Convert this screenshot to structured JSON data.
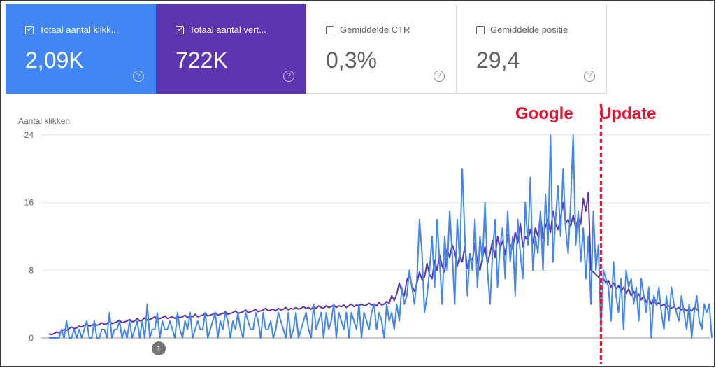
{
  "metrics": [
    {
      "label": "Totaal aantal klikk...",
      "value": "2,09K",
      "checked": true
    },
    {
      "label": "Totaal aantal vert...",
      "value": "722K",
      "checked": true
    },
    {
      "label": "Gemiddelde CTR",
      "value": "0,3%",
      "checked": false
    },
    {
      "label": "Gemiddelde positie",
      "value": "29,4",
      "checked": false
    }
  ],
  "help_glyph": "?",
  "annotation_badge": "1",
  "colors": {
    "clicks": "#4285f4",
    "impressions": "#5e35b1",
    "update": "#e8112d",
    "grid": "#e6e6e6"
  },
  "chart_data": {
    "type": "line",
    "ylabel": "Aantal klikken",
    "ylim": [
      0,
      24
    ],
    "yticks": [
      "0",
      "8",
      "16",
      "24"
    ],
    "annotation_text": [
      "Google",
      "Update"
    ],
    "update_index": 219,
    "series": [
      {
        "name": "Totaal aantal klikken",
        "values": [
          0,
          0,
          0,
          0,
          0,
          1,
          0,
          2,
          0,
          0,
          1,
          0,
          1,
          0,
          1,
          2,
          0,
          0,
          2,
          0,
          0,
          1,
          1,
          0,
          3,
          0,
          1,
          1,
          2,
          0,
          1,
          0,
          2,
          0,
          1,
          2,
          0,
          2,
          0,
          4,
          0,
          1,
          1,
          3,
          0,
          2,
          1,
          1,
          2,
          1,
          0,
          3,
          1,
          0,
          2,
          1,
          3,
          0,
          1,
          2,
          1,
          1,
          3,
          0,
          1,
          2,
          3,
          0,
          2,
          1,
          3,
          2,
          0,
          2,
          1,
          3,
          1,
          0,
          3,
          2,
          1,
          1,
          3,
          2,
          0,
          3,
          1,
          1,
          2,
          0,
          1,
          3,
          2,
          1,
          0,
          3,
          0,
          1,
          3,
          0,
          1,
          2,
          3,
          1,
          0,
          4,
          1,
          2,
          3,
          0,
          3,
          1,
          2,
          4,
          0,
          3,
          2,
          1,
          3,
          0,
          3,
          2,
          1,
          4,
          0,
          3,
          2,
          1,
          3,
          4,
          1,
          3,
          2,
          0,
          4,
          2,
          3,
          1,
          4,
          2,
          6,
          4,
          5,
          8,
          6,
          4,
          7,
          14,
          10,
          3,
          5,
          8,
          12,
          6,
          14,
          9,
          4,
          12,
          8,
          15,
          10,
          4,
          14,
          9,
          20,
          12,
          5,
          10,
          8,
          14,
          6,
          12,
          9,
          16,
          8,
          4,
          10,
          14,
          6,
          11,
          13,
          7,
          15,
          9,
          12,
          5,
          14,
          10,
          7,
          16,
          11,
          19,
          8,
          12,
          10,
          15,
          8,
          17,
          11,
          24,
          9,
          14,
          18,
          12,
          20,
          13,
          10,
          16,
          24,
          11,
          15,
          9,
          13,
          7,
          12,
          4,
          15,
          8,
          11,
          1,
          8,
          7,
          6,
          2,
          9,
          5,
          3,
          7,
          1,
          8,
          6,
          7,
          4,
          6,
          2,
          7,
          5,
          3,
          6,
          0,
          5,
          4,
          6,
          3,
          1,
          5,
          2,
          6,
          4,
          3,
          2,
          5,
          3,
          1,
          4,
          0,
          3,
          5,
          2,
          1,
          4,
          3,
          4,
          0
        ]
      },
      {
        "name": "Totaal aantal vertoningen",
        "values": [
          0.5,
          0.4,
          0.5,
          0.7,
          0.6,
          0.8,
          1.0,
          0.9,
          1.1,
          1.3,
          1.1,
          1.2,
          1.4,
          1.3,
          1.5,
          1.6,
          1.4,
          1.5,
          1.7,
          1.5,
          1.6,
          1.8,
          1.6,
          1.7,
          2.0,
          1.7,
          1.8,
          1.9,
          2.1,
          1.8,
          1.9,
          2.0,
          2.2,
          1.9,
          2.0,
          2.3,
          2.0,
          2.1,
          2.4,
          2.1,
          2.2,
          2.3,
          2.5,
          2.2,
          2.3,
          2.4,
          2.6,
          2.3,
          2.4,
          2.5,
          2.3,
          2.6,
          2.4,
          2.5,
          2.7,
          2.4,
          2.6,
          2.5,
          2.8,
          2.5,
          2.6,
          2.7,
          2.9,
          2.6,
          2.7,
          2.8,
          3.0,
          2.7,
          2.8,
          2.9,
          3.1,
          2.8,
          2.9,
          3.0,
          3.2,
          2.9,
          3.0,
          3.1,
          3.3,
          3.0,
          3.1,
          3.2,
          3.4,
          3.1,
          3.2,
          3.3,
          3.5,
          3.2,
          3.3,
          3.4,
          3.2,
          3.5,
          3.3,
          3.4,
          3.6,
          3.3,
          3.5,
          3.4,
          3.6,
          3.4,
          3.5,
          3.7,
          3.5,
          3.6,
          3.4,
          3.7,
          3.5,
          3.8,
          3.6,
          3.5,
          3.8,
          3.6,
          3.7,
          3.9,
          3.6,
          3.8,
          3.7,
          3.9,
          3.6,
          3.8,
          4.0,
          3.7,
          3.9,
          3.8,
          4.0,
          3.8,
          3.9,
          4.1,
          3.9,
          4.0,
          3.8,
          4.2,
          3.9,
          4.0,
          4.3,
          4.1,
          5.0,
          4.4,
          5.2,
          6.5,
          5.5,
          5.0,
          6.8,
          7.5,
          6.2,
          5.5,
          6.5,
          7.8,
          6.9,
          7.2,
          8.8,
          7.5,
          7.0,
          9.2,
          8.0,
          9.8,
          8.5,
          7.8,
          10.5,
          9.5,
          11.0,
          10.2,
          8.5,
          9.8,
          9.0,
          10.8,
          8.2,
          9.5,
          9.2,
          11.2,
          9.0,
          8.0,
          9.5,
          10.8,
          8.8,
          10.0,
          11.5,
          9.5,
          12.0,
          10.5,
          11.5,
          9.8,
          12.2,
          11.0,
          10.5,
          12.5,
          11.2,
          13.5,
          10.8,
          12.0,
          11.5,
          12.8,
          11.2,
          13.0,
          12.0,
          14.5,
          11.8,
          13.2,
          14.0,
          12.5,
          15.0,
          13.5,
          12.8,
          14.2,
          16.0,
          13.5,
          14.0,
          13.2,
          14.5,
          13.0,
          14.2,
          13.5,
          16.5,
          15.0,
          17.2,
          8.0,
          7.8,
          7.5,
          7.2,
          6.8,
          7.0,
          6.5,
          6.8,
          6.0,
          6.5,
          5.8,
          6.2,
          5.5,
          6.0,
          5.2,
          5.8,
          5.0,
          5.5,
          4.8,
          5.2,
          4.5,
          5.0,
          4.2,
          4.8,
          4.0,
          4.6,
          3.9,
          4.2,
          3.8,
          4.0,
          3.6,
          3.8,
          3.5,
          3.7,
          3.4,
          3.6,
          3.3,
          3.5,
          3.2,
          3.4,
          3.2,
          3.6,
          3.4,
          3.1
        ]
      }
    ]
  }
}
